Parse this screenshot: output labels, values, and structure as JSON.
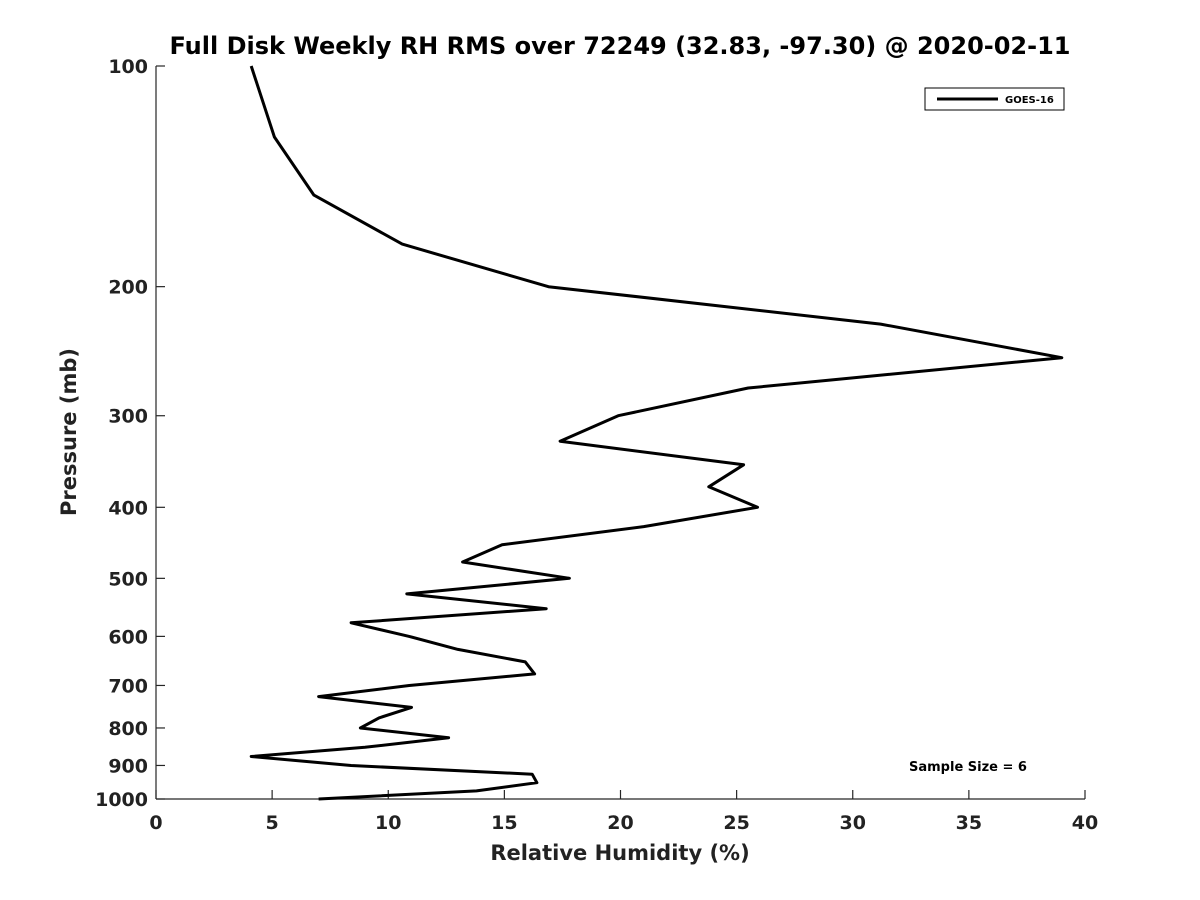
{
  "chart_data": {
    "type": "line",
    "title": "Full Disk Weekly RH RMS over 72249 (32.83, -97.30) @ 2020-02-11",
    "xlabel": "Relative Humidity (%)",
    "ylabel": "Pressure (mb)",
    "xlim": [
      0,
      40
    ],
    "ylim": [
      100,
      1000
    ],
    "y_scale": "log",
    "y_reversed": true,
    "x_ticks": [
      "0",
      "5",
      "10",
      "15",
      "20",
      "25",
      "30",
      "35",
      "40"
    ],
    "y_ticks": [
      "100",
      "200",
      "300",
      "400",
      "500",
      "600",
      "700",
      "800",
      "900",
      "1000"
    ],
    "grid": false,
    "legend_position": "top-right",
    "annotation": "Sample Size = 6",
    "series": [
      {
        "name": "GOES-16",
        "color": "#000000",
        "points": [
          {
            "x": 4.1,
            "p": 100
          },
          {
            "x": 5.1,
            "p": 125
          },
          {
            "x": 6.8,
            "p": 150
          },
          {
            "x": 10.6,
            "p": 175
          },
          {
            "x": 16.9,
            "p": 200
          },
          {
            "x": 31.2,
            "p": 225
          },
          {
            "x": 39.0,
            "p": 250
          },
          {
            "x": 25.5,
            "p": 275
          },
          {
            "x": 19.9,
            "p": 300
          },
          {
            "x": 17.4,
            "p": 325
          },
          {
            "x": 25.3,
            "p": 350
          },
          {
            "x": 23.8,
            "p": 375
          },
          {
            "x": 25.9,
            "p": 400
          },
          {
            "x": 21.0,
            "p": 425
          },
          {
            "x": 14.9,
            "p": 450
          },
          {
            "x": 13.2,
            "p": 475
          },
          {
            "x": 17.8,
            "p": 500
          },
          {
            "x": 10.8,
            "p": 525
          },
          {
            "x": 16.8,
            "p": 550
          },
          {
            "x": 8.4,
            "p": 575
          },
          {
            "x": 10.9,
            "p": 600
          },
          {
            "x": 13.0,
            "p": 625
          },
          {
            "x": 15.9,
            "p": 650
          },
          {
            "x": 16.3,
            "p": 675
          },
          {
            "x": 10.9,
            "p": 700
          },
          {
            "x": 7.0,
            "p": 725
          },
          {
            "x": 11.0,
            "p": 750
          },
          {
            "x": 9.6,
            "p": 775
          },
          {
            "x": 8.8,
            "p": 800
          },
          {
            "x": 12.6,
            "p": 825
          },
          {
            "x": 9.0,
            "p": 850
          },
          {
            "x": 4.1,
            "p": 875
          },
          {
            "x": 8.4,
            "p": 900
          },
          {
            "x": 16.2,
            "p": 925
          },
          {
            "x": 16.4,
            "p": 950
          },
          {
            "x": 13.8,
            "p": 975
          },
          {
            "x": 7.0,
            "p": 1000
          }
        ]
      }
    ]
  }
}
